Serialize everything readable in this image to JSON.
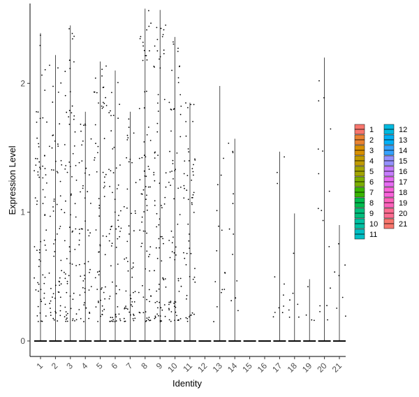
{
  "chart_data": {
    "type": "violin",
    "xlabel": "Identity",
    "ylabel": "Expression Level",
    "ylim": [
      -0.12,
      2.62
    ],
    "yticks": [
      0,
      1,
      2
    ],
    "categories": [
      "1",
      "2",
      "3",
      "4",
      "5",
      "6",
      "7",
      "8",
      "9",
      "10",
      "11",
      "12",
      "13",
      "14",
      "15",
      "16",
      "17",
      "18",
      "19",
      "20",
      "21"
    ],
    "max_values": [
      2.39,
      2.22,
      2.45,
      1.78,
      2.17,
      2.1,
      1.78,
      2.58,
      2.57,
      2.36,
      1.85,
      0,
      1.98,
      1.57,
      0,
      0,
      1.47,
      0.99,
      0.48,
      2.2,
      0.9
    ],
    "grid": false,
    "legend_position": "right",
    "legend": [
      "1",
      "2",
      "3",
      "4",
      "5",
      "6",
      "7",
      "8",
      "9",
      "10",
      "11",
      "12",
      "13",
      "14",
      "15",
      "16",
      "17",
      "18",
      "19",
      "20",
      "21"
    ],
    "colors": [
      "#F8766D",
      "#EA8331",
      "#D89000",
      "#C09B00",
      "#A3A500",
      "#7CAE00",
      "#39B600",
      "#00BB4E",
      "#00BF7D",
      "#00C1A3",
      "#00BFC4",
      "#00BAE0",
      "#00B0F6",
      "#35A2FF",
      "#9590FF",
      "#C77CFF",
      "#E76BF3",
      "#FA62DB",
      "#FF62BC",
      "#FF6C91",
      "#F8766D"
    ]
  }
}
